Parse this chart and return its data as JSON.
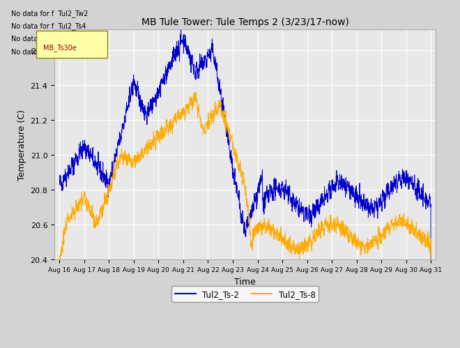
{
  "title": "MB Tule Tower: Tule Temps 2 (3/23/17-now)",
  "xlabel": "Time",
  "ylabel": "Temperature (C)",
  "ylim": [
    20.4,
    21.72
  ],
  "line1_color": "#0000cc",
  "line2_color": "#ffaa00",
  "legend_labels": [
    "Tul2_Ts-2",
    "Tul2_Ts-8"
  ],
  "no_data_texts": [
    "No data for f  Tul2_Tw2",
    "No data for f  Tul2_Ts4",
    "No data for f  Tul2_Ts16",
    "No data for f  Tul2_Ts30e"
  ],
  "tooltip_text": "MB_Ts30e",
  "xtick_labels": [
    "Aug 16",
    "Aug 17",
    "Aug 18",
    "Aug 19",
    "Aug 20",
    "Aug 21",
    "Aug 22",
    "Aug 23",
    "Aug 24",
    "Aug 25",
    "Aug 26",
    "Aug 27",
    "Aug 28",
    "Aug 29",
    "Aug 30",
    "Aug 31"
  ],
  "ytick_values": [
    20.4,
    20.6,
    20.8,
    21.0,
    21.2,
    21.4,
    21.6
  ],
  "fig_facecolor": "#d3d3d3",
  "ax_facecolor": "#e8e8e8",
  "grid_color": "#ffffff"
}
